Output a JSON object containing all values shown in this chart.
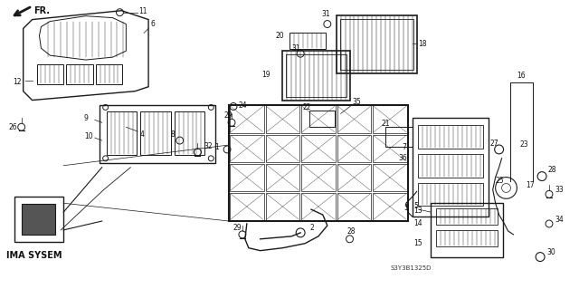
{
  "background_color": "#f0f0f0",
  "line_color": "#1a1a1a",
  "text_color": "#111111",
  "fig_width": 6.4,
  "fig_height": 3.19,
  "dpi": 100,
  "title": "IMA SYSEM",
  "diagram_id": "S3Y3B1325D"
}
